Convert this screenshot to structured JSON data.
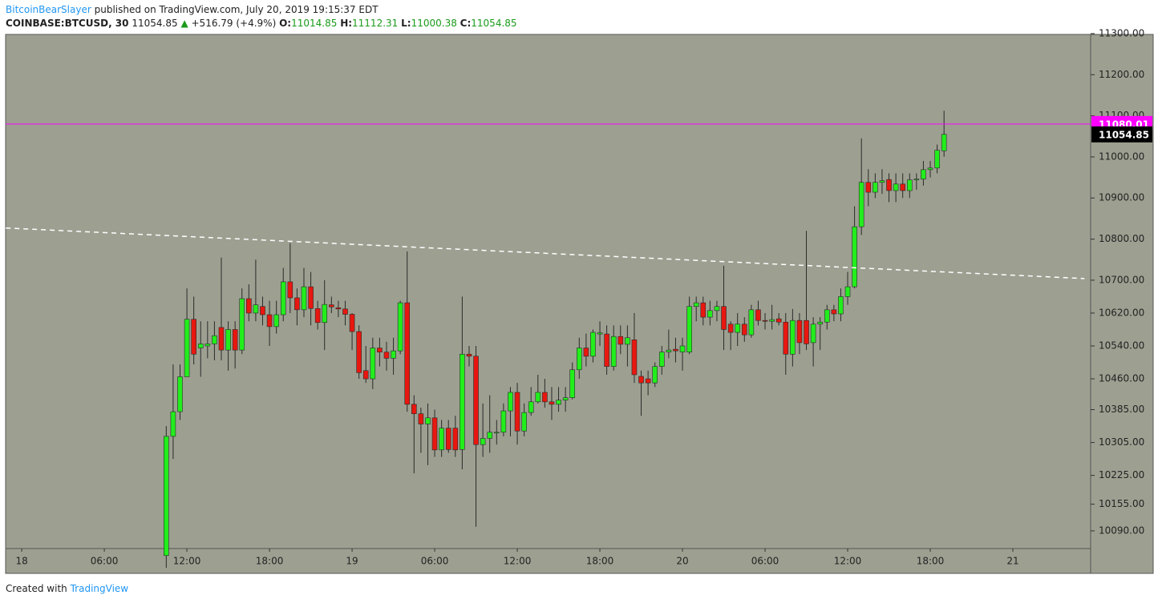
{
  "header": {
    "author": "BitcoinBearSlayer",
    "published": "published on TradingView.com, July 20, 2019 19:15:37 EDT",
    "symbol": "COINBASE:BTCUSD, 30",
    "arrow": "▲",
    "change": "+516.79 (+4.9%)",
    "o": "O:",
    "h": "H:",
    "l": "L:",
    "c": "C:"
  },
  "footer": {
    "created": "Created with",
    "brand": "TradingView"
  },
  "chart_data": {
    "type": "candlestick",
    "x": [
      10.5,
      11,
      11.5,
      12,
      12.5,
      13,
      13.5,
      14,
      14.5,
      15,
      15.5,
      16,
      16.5,
      17,
      17.5,
      18,
      18.5,
      19,
      19.5,
      20,
      20.5,
      21,
      21.5,
      22,
      22.5,
      23,
      23.5,
      24,
      24.5,
      25,
      25.5,
      26,
      26.5,
      27,
      27.5,
      28,
      28.5,
      29,
      29.5,
      30,
      30.5,
      31,
      31.5,
      32,
      32.5,
      33,
      33.5,
      34,
      34.5,
      35,
      35.5,
      36,
      36.5,
      37,
      37.5,
      38,
      38.5,
      39,
      39.5,
      40,
      40.5,
      41,
      41.5,
      42,
      42.5,
      43,
      43.5,
      44,
      44.5,
      45,
      45.5,
      46,
      46.5,
      47,
      47.5,
      48,
      48.5,
      49,
      49.5,
      50,
      50.5,
      51,
      51.5,
      52,
      52.5,
      53,
      53.5,
      54,
      54.5,
      55,
      55.5,
      56,
      56.5,
      57,
      57.5,
      58,
      58.5,
      59,
      59.5,
      60,
      60.5,
      61,
      61.5,
      62,
      62.5,
      63,
      63.5,
      64,
      64.5,
      65,
      65.5,
      66,
      66.5,
      67
    ],
    "open": [
      10030,
      10320,
      10380,
      10465,
      10605,
      10535,
      10540,
      10545,
      10585,
      10530,
      10580,
      10530,
      10655,
      10620,
      10636,
      10616,
      10587,
      10616,
      10696,
      10657,
      10628,
      10684,
      10631,
      10597,
      10640,
      10633,
      10630,
      10617,
      10575,
      10480,
      10460,
      10535,
      10525,
      10510,
      10528,
      10645,
      10398,
      10375,
      10350,
      10365,
      10287,
      10340,
      10340,
      10288,
      10520,
      10515,
      10300,
      10315,
      10330,
      10330,
      10382,
      10427,
      10333,
      10378,
      10404,
      10427,
      10404,
      10398,
      10408,
      10414,
      10482,
      10535,
      10515,
      10569,
      10569,
      10490,
      10563,
      10544,
      10555,
      10466,
      10460,
      10450,
      10490,
      10525,
      10532,
      10525,
      10525,
      10636,
      10645,
      10610,
      10626,
      10636,
      10593,
      10573,
      10593,
      10567,
      10628,
      10602,
      10600,
      10606,
      10598,
      10520,
      10602,
      10602,
      10548,
      10593,
      10598,
      10628,
      10618,
      10660,
      10684,
      10830,
      10938,
      10914,
      10938,
      10945,
      10918,
      10934,
      10918,
      10944,
      10946,
      10969,
      10973,
      11014.85
    ],
    "high": [
      10345,
      10495,
      10495,
      10680,
      10660,
      10600,
      10600,
      10600,
      10755,
      10600,
      10600,
      10680,
      10690,
      10750,
      10660,
      10650,
      10650,
      10730,
      10790,
      10680,
      10730,
      10720,
      10650,
      10700,
      10660,
      10650,
      10650,
      10620,
      10590,
      10540,
      10560,
      10560,
      10550,
      10560,
      10650,
      10770,
      10420,
      10390,
      10400,
      10385,
      10360,
      10360,
      10370,
      10660,
      10540,
      10540,
      10400,
      10420,
      10360,
      10400,
      10440,
      10450,
      10400,
      10440,
      10470,
      10460,
      10440,
      10440,
      10440,
      10500,
      10560,
      10570,
      10580,
      10600,
      10590,
      10590,
      10590,
      10590,
      10620,
      10480,
      10480,
      10500,
      10540,
      10580,
      10560,
      10560,
      10660,
      10660,
      10660,
      10650,
      10650,
      10735,
      10600,
      10620,
      10610,
      10640,
      10650,
      10620,
      10640,
      10620,
      10620,
      10630,
      10620,
      10820,
      10610,
      10610,
      10640,
      10640,
      10680,
      10720,
      10880,
      11045,
      10970,
      10960,
      10970,
      10960,
      10960,
      10960,
      10960,
      10960,
      10990,
      10990,
      11030,
      11112.31
    ],
    "low": [
      10000,
      10265,
      10360,
      10465,
      10495,
      10465,
      10510,
      10505,
      10505,
      10480,
      10485,
      10520,
      10600,
      10600,
      10590,
      10540,
      10570,
      10600,
      10620,
      10590,
      10610,
      10590,
      10580,
      10530,
      10620,
      10610,
      10590,
      10530,
      10460,
      10450,
      10435,
      10490,
      10480,
      10470,
      10520,
      10380,
      10230,
      10280,
      10250,
      10270,
      10270,
      10280,
      10270,
      10240,
      10490,
      10100,
      10270,
      10280,
      10300,
      10320,
      10320,
      10300,
      10320,
      10370,
      10400,
      10390,
      10360,
      10380,
      10380,
      10410,
      10460,
      10490,
      10500,
      10540,
      10470,
      10480,
      10520,
      10490,
      10450,
      10370,
      10420,
      10440,
      10470,
      10510,
      10500,
      10480,
      10520,
      10600,
      10590,
      10590,
      10600,
      10530,
      10530,
      10540,
      10550,
      10560,
      10590,
      10580,
      10580,
      10590,
      10470,
      10490,
      10520,
      10530,
      10490,
      10530,
      10580,
      10600,
      10600,
      10640,
      10680,
      10810,
      10880,
      10900,
      10910,
      10890,
      10890,
      10900,
      10900,
      10920,
      10930,
      10950,
      10960,
      11000.38
    ],
    "close": [
      10320,
      10380,
      10465,
      10605,
      10520,
      10545,
      10545,
      10565,
      10530,
      10580,
      10530,
      10655,
      10620,
      10640,
      10616,
      10587,
      10616,
      10696,
      10657,
      10628,
      10684,
      10631,
      10597,
      10641,
      10635,
      10630,
      10617,
      10575,
      10475,
      10460,
      10535,
      10525,
      10510,
      10528,
      10645,
      10398,
      10375,
      10350,
      10365,
      10287,
      10340,
      10288,
      10287,
      10520,
      10515,
      10300,
      10315,
      10330,
      10330,
      10382,
      10427,
      10333,
      10378,
      10404,
      10427,
      10404,
      10398,
      10408,
      10414,
      10482,
      10535,
      10515,
      10573,
      10572,
      10490,
      10563,
      10544,
      10560,
      10470,
      10450,
      10450,
      10490,
      10525,
      10530,
      10528,
      10540,
      10636,
      10645,
      10610,
      10626,
      10636,
      10580,
      10573,
      10593,
      10567,
      10628,
      10602,
      10600,
      10604,
      10598,
      10520,
      10602,
      10548,
      10545,
      10593,
      10598,
      10628,
      10618,
      10660,
      10684,
      10830,
      10938,
      10914,
      10938,
      10942,
      10918,
      10934,
      10918,
      10944,
      10946,
      10969,
      10973,
      11016,
      11054.85
    ],
    "up_color": "#22ee1c",
    "down_color": "#e8170f",
    "xlim": [
      -1.17,
      77.65
    ],
    "xticks": [
      {
        "value": 0,
        "label": "18"
      },
      {
        "value": 6,
        "label": "06:00"
      },
      {
        "value": 12,
        "label": "12:00"
      },
      {
        "value": 18,
        "label": "18:00"
      },
      {
        "value": 24,
        "label": "19"
      },
      {
        "value": 30,
        "label": "06:00"
      },
      {
        "value": 36,
        "label": "12:00"
      },
      {
        "value": 42,
        "label": "18:00"
      },
      {
        "value": 48,
        "label": "20"
      },
      {
        "value": 54,
        "label": "06:00"
      },
      {
        "value": 60,
        "label": "12:00"
      },
      {
        "value": 66,
        "label": "18:00"
      },
      {
        "value": 72,
        "label": "21"
      }
    ],
    "ylim": [
      10047,
      11298
    ],
    "yticks": [
      {
        "value": 11300,
        "label": "11300.00"
      },
      {
        "value": 11200,
        "label": "11200.00"
      },
      {
        "value": 11100,
        "label": "11100.00"
      },
      {
        "value": 11000,
        "label": "11000.00"
      },
      {
        "value": 10900,
        "label": "10900.00"
      },
      {
        "value": 10800,
        "label": "10800.00"
      },
      {
        "value": 10700,
        "label": "10700.00"
      },
      {
        "value": 10620,
        "label": "10620.00"
      },
      {
        "value": 10540,
        "label": "10540.00"
      },
      {
        "value": 10460,
        "label": "10460.00"
      },
      {
        "value": 10385,
        "label": "10385.00"
      },
      {
        "value": 10305,
        "label": "10305.00"
      },
      {
        "value": 10225,
        "label": "10225.00"
      },
      {
        "value": 10155,
        "label": "10155.00"
      },
      {
        "value": 10090,
        "label": "10090.00"
      }
    ],
    "trendline": {
      "x": [
        -1.16,
        77.2
      ],
      "y": [
        10827,
        10704
      ],
      "color": "#ffffff"
    },
    "hline": {
      "value": 11080.01,
      "color": "#ff00ff"
    }
  }
}
